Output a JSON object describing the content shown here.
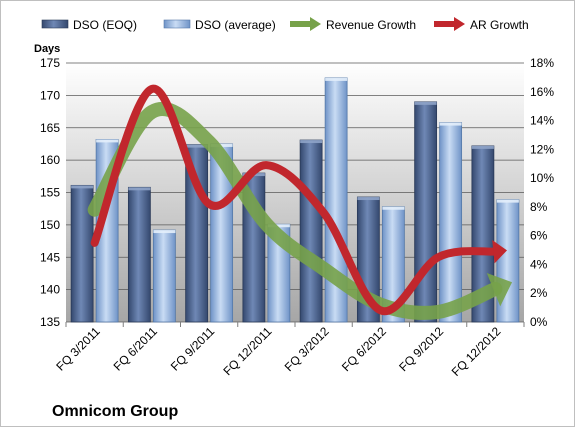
{
  "chart_data": {
    "type": "bar",
    "title": "Omnicom Group",
    "ylabel": "Days",
    "y2label": "",
    "categories": [
      "FQ 3/2011",
      "FQ 6/2011",
      "FQ 9/2011",
      "FQ 12/2011",
      "FQ 3/2012",
      "FQ 6/2012",
      "FQ 9/2012",
      "FQ 12/2012"
    ],
    "ylim": [
      135,
      175
    ],
    "yticks": [
      "135",
      "140",
      "145",
      "150",
      "155",
      "160",
      "165",
      "170",
      "175"
    ],
    "y2lim": [
      0,
      18
    ],
    "y2ticks": [
      "0%",
      "2%",
      "4%",
      "6%",
      "8%",
      "10%",
      "12%",
      "14%",
      "16%",
      "18%"
    ],
    "grid": true,
    "legend_position": "top",
    "series": [
      {
        "name": "DSO (EOQ)",
        "kind": "bar",
        "axis": "left",
        "color": "#4f6a96",
        "values": [
          156.1,
          155.8,
          162.4,
          158.0,
          163.1,
          154.3,
          169.0,
          162.2
        ]
      },
      {
        "name": "DSO (average)",
        "kind": "bar",
        "axis": "left",
        "color": "#a9c4e8",
        "values": [
          163.2,
          149.2,
          162.5,
          150.1,
          172.7,
          152.8,
          165.8,
          153.9
        ]
      },
      {
        "name": "Revenue Growth",
        "kind": "line",
        "axis": "right",
        "color": "#77a24a",
        "values": [
          7.8,
          14.6,
          12.5,
          6.8,
          3.7,
          1.2,
          0.7,
          2.3
        ]
      },
      {
        "name": "AR Growth",
        "kind": "line",
        "axis": "right",
        "color": "#c1272d",
        "values": [
          5.5,
          16.2,
          8.2,
          10.9,
          7.6,
          0.8,
          4.5,
          4.9
        ]
      }
    ]
  },
  "colors": {
    "plot_bg_top": "#ffffff",
    "plot_bg_bottom": "#a6a6a6",
    "gridline": "#595959"
  }
}
